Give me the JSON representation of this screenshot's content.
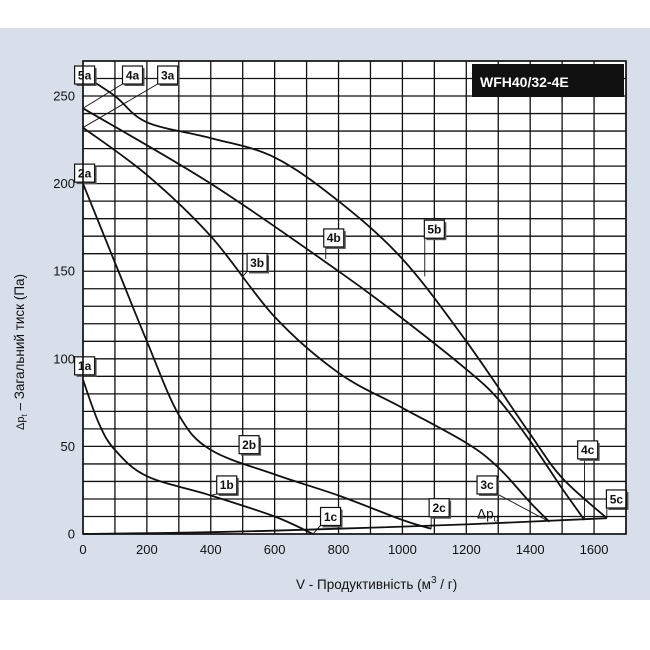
{
  "chart_data": {
    "type": "line",
    "model": "WFH40/32-4E",
    "xlabel": "V - Продуктивність  (м³ / г)",
    "xlabel_main": "V - Продуктивність  (м",
    "xlabel_sup": "3",
    "xlabel_end": " / г)",
    "ylabel": "Δp t – Загальний тиск (Па)",
    "ylabel_sym": "Δp",
    "ylabel_sub": "t",
    "ylabel_main": " – Загальний тиск (Па)",
    "xlim": [
      0,
      1700
    ],
    "ylim": [
      0,
      270
    ],
    "x_ticks": [
      0,
      200,
      400,
      600,
      800,
      1000,
      1200,
      1400,
      1600
    ],
    "y_ticks": [
      0,
      50,
      100,
      150,
      200,
      250
    ],
    "grid": true,
    "series": [
      {
        "name": "1",
        "points": [
          [
            0,
            88
          ],
          [
            50,
            63
          ],
          [
            100,
            48
          ],
          [
            200,
            33
          ],
          [
            400,
            22
          ],
          [
            600,
            10
          ],
          [
            720,
            0
          ]
        ]
      },
      {
        "name": "2",
        "points": [
          [
            0,
            200
          ],
          [
            100,
            155
          ],
          [
            200,
            110
          ],
          [
            300,
            68
          ],
          [
            400,
            48
          ],
          [
            600,
            34
          ],
          [
            800,
            22
          ],
          [
            1000,
            8
          ],
          [
            1090,
            3
          ]
        ]
      },
      {
        "name": "3",
        "points": [
          [
            0,
            232
          ],
          [
            200,
            205
          ],
          [
            400,
            170
          ],
          [
            600,
            124
          ],
          [
            800,
            92
          ],
          [
            1000,
            72
          ],
          [
            1200,
            52
          ],
          [
            1300,
            38
          ],
          [
            1400,
            18
          ],
          [
            1460,
            7
          ]
        ]
      },
      {
        "name": "4",
        "points": [
          [
            0,
            243
          ],
          [
            400,
            200
          ],
          [
            800,
            150
          ],
          [
            1000,
            123
          ],
          [
            1200,
            94
          ],
          [
            1300,
            77
          ],
          [
            1400,
            53
          ],
          [
            1500,
            26
          ],
          [
            1570,
            8
          ]
        ]
      },
      {
        "name": "5",
        "points": [
          [
            0,
            262
          ],
          [
            100,
            250
          ],
          [
            200,
            235
          ],
          [
            400,
            226
          ],
          [
            600,
            215
          ],
          [
            800,
            190
          ],
          [
            1000,
            157
          ],
          [
            1200,
            110
          ],
          [
            1400,
            57
          ],
          [
            1500,
            32
          ],
          [
            1640,
            9
          ]
        ]
      },
      {
        "name": "Δpd",
        "points": [
          [
            0,
            0
          ],
          [
            400,
            1
          ],
          [
            800,
            3
          ],
          [
            1200,
            5.5
          ],
          [
            1640,
            9
          ]
        ]
      }
    ],
    "labels": [
      {
        "text": "5a",
        "box": [
          5,
          262
        ],
        "target": [
          0,
          262
        ]
      },
      {
        "text": "4a",
        "box": [
          155,
          262
        ],
        "target": [
          0,
          243
        ]
      },
      {
        "text": "3a",
        "box": [
          265,
          262
        ],
        "target": [
          0,
          232
        ]
      },
      {
        "text": "2a",
        "box": [
          5,
          206
        ],
        "target": [
          0,
          200
        ]
      },
      {
        "text": "1a",
        "box": [
          5,
          96
        ],
        "target": [
          0,
          88
        ]
      },
      {
        "text": "1b",
        "box": [
          450,
          28
        ],
        "target": [
          400,
          22
        ]
      },
      {
        "text": "2b",
        "box": [
          520,
          51
        ],
        "target": [
          500,
          42
        ]
      },
      {
        "text": "3b",
        "box": [
          545,
          155
        ],
        "target": [
          500,
          147
        ]
      },
      {
        "text": "4b",
        "box": [
          785,
          169
        ],
        "target": [
          760,
          157
        ]
      },
      {
        "text": "5b",
        "box": [
          1100,
          174
        ],
        "target": [
          1070,
          147
        ]
      },
      {
        "text": "1c",
        "box": [
          775,
          10
        ],
        "target": [
          720,
          0
        ]
      },
      {
        "text": "2c",
        "box": [
          1115,
          15
        ],
        "target": [
          1090,
          3
        ]
      },
      {
        "text": "3c",
        "box": [
          1265,
          28
        ],
        "target": [
          1460,
          7
        ]
      },
      {
        "text": "4c",
        "box": [
          1580,
          48
        ],
        "target": [
          1570,
          8
        ]
      },
      {
        "text": "5c",
        "box": [
          1670,
          20
        ],
        "target": [
          1640,
          9
        ]
      }
    ],
    "dpd_label": {
      "sym": "Δp",
      "sub": "d",
      "pos": [
        1265,
        11
      ]
    }
  }
}
